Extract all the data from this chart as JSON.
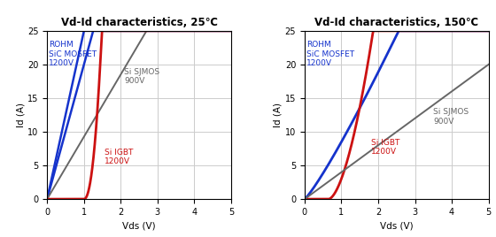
{
  "title_25": "Vd-Id characteristics, 25℃",
  "title_150": "Vd-Id characteristics, 150℃",
  "xlabel": "Vds (V)",
  "ylabel": "Id (A)",
  "xlim": [
    0,
    5
  ],
  "ylim": [
    0,
    25
  ],
  "xticks": [
    0,
    1,
    2,
    3,
    4,
    5
  ],
  "yticks": [
    0,
    5,
    10,
    15,
    20,
    25
  ],
  "colors": {
    "rohm": "#1533cc",
    "sjmos": "#666666",
    "igbt": "#cc1111"
  },
  "lw_rohm": 2.0,
  "lw_sjmos": 1.5,
  "lw_igbt": 2.0,
  "background": "#ffffff",
  "grid_color": "#cccccc",
  "ann_rohm_25": [
    0.05,
    23.5
  ],
  "ann_sjmos_25": [
    2.1,
    19.5
  ],
  "ann_igbt_25": [
    1.55,
    7.5
  ],
  "ann_rohm_150": [
    0.05,
    23.5
  ],
  "ann_sjmos_150": [
    3.5,
    13.5
  ],
  "ann_igbt_150": [
    1.8,
    9.0
  ]
}
